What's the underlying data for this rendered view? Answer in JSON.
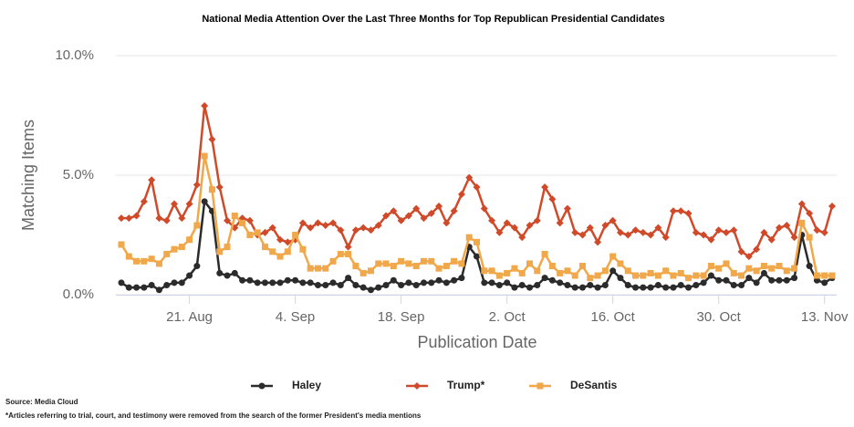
{
  "chart_data": {
    "type": "line",
    "title": "National Media Attention Over the Last Three Months for Top Republican Presidential Candidates",
    "y_label": "Matching Items",
    "x_label": "Publication Date",
    "notes": [
      "Source: Media Cloud",
      "*Articles referring to trial, court, and testimony were removed from the search of the former President's media mentions"
    ],
    "x": [
      "12. Aug",
      "13. Aug",
      "14. Aug",
      "15. Aug",
      "16. Aug",
      "17. Aug",
      "18. Aug",
      "19. Aug",
      "20. Aug",
      "21. Aug",
      "22. Aug",
      "23. Aug",
      "24. Aug",
      "25. Aug",
      "26. Aug",
      "27. Aug",
      "28. Aug",
      "29. Aug",
      "30. Aug",
      "31. Aug",
      "1. Sep",
      "2. Sep",
      "3. Sep",
      "4. Sep",
      "5. Sep",
      "6. Sep",
      "7. Sep",
      "8. Sep",
      "9. Sep",
      "10. Sep",
      "11. Sep",
      "12. Sep",
      "13. Sep",
      "14. Sep",
      "15. Sep",
      "16. Sep",
      "17. Sep",
      "18. Sep",
      "19. Sep",
      "20. Sep",
      "21. Sep",
      "22. Sep",
      "23. Sep",
      "24. Sep",
      "25. Sep",
      "26. Sep",
      "27. Sep",
      "28. Sep",
      "29. Sep",
      "30. Sep",
      "1. Oct",
      "2. Oct",
      "3. Oct",
      "4. Oct",
      "5. Oct",
      "6. Oct",
      "7. Oct",
      "8. Oct",
      "9. Oct",
      "10. Oct",
      "11. Oct",
      "12. Oct",
      "13. Oct",
      "14. Oct",
      "15. Oct",
      "16. Oct",
      "17. Oct",
      "18. Oct",
      "19. Oct",
      "20. Oct",
      "21. Oct",
      "22. Oct",
      "23. Oct",
      "24. Oct",
      "25. Oct",
      "26. Oct",
      "27. Oct",
      "28. Oct",
      "29. Oct",
      "30. Oct",
      "31. Oct",
      "1. Nov",
      "2. Nov",
      "3. Nov",
      "4. Nov",
      "5. Nov",
      "6. Nov",
      "7. Nov",
      "8. Nov",
      "9. Nov",
      "10. Nov",
      "11. Nov",
      "12. Nov",
      "13. Nov",
      "14. Nov"
    ],
    "xticks": [
      "21. Aug",
      "4. Sep",
      "18. Sep",
      "2. Oct",
      "16. Oct",
      "30. Oct",
      "13. Nov"
    ],
    "ylim": [
      0,
      10
    ],
    "yticks": [
      {
        "value": 0,
        "label": "0.0%"
      },
      {
        "value": 5,
        "label": "5.0%"
      },
      {
        "value": 10,
        "label": "10.0%"
      }
    ],
    "grid": true,
    "series": [
      {
        "name": "Haley",
        "color": "#2b2b2b",
        "marker": "circle",
        "values": [
          0.5,
          0.3,
          0.3,
          0.3,
          0.4,
          0.2,
          0.4,
          0.5,
          0.5,
          0.8,
          1.2,
          3.9,
          3.5,
          0.9,
          0.8,
          0.9,
          0.6,
          0.6,
          0.5,
          0.5,
          0.5,
          0.5,
          0.6,
          0.6,
          0.5,
          0.5,
          0.4,
          0.4,
          0.5,
          0.4,
          0.7,
          0.4,
          0.3,
          0.2,
          0.3,
          0.4,
          0.6,
          0.4,
          0.5,
          0.4,
          0.5,
          0.5,
          0.6,
          0.5,
          0.6,
          0.7,
          2.0,
          1.6,
          0.5,
          0.5,
          0.4,
          0.5,
          0.3,
          0.4,
          0.3,
          0.4,
          0.7,
          0.6,
          0.5,
          0.4,
          0.3,
          0.3,
          0.4,
          0.3,
          0.4,
          1.0,
          0.7,
          0.4,
          0.3,
          0.3,
          0.3,
          0.4,
          0.3,
          0.3,
          0.4,
          0.3,
          0.4,
          0.5,
          0.8,
          0.6,
          0.6,
          0.4,
          0.4,
          0.7,
          0.5,
          0.9,
          0.6,
          0.6,
          0.6,
          0.7,
          2.5,
          1.2,
          0.6,
          0.5,
          0.7
        ]
      },
      {
        "name": "Trump*",
        "color": "#d04a2a",
        "marker": "diamond",
        "values": [
          3.2,
          3.2,
          3.3,
          3.9,
          4.8,
          3.2,
          3.1,
          3.8,
          3.2,
          3.8,
          4.6,
          7.9,
          6.5,
          4.5,
          3.1,
          2.8,
          3.2,
          3.1,
          2.5,
          2.6,
          2.8,
          2.3,
          2.2,
          2.3,
          3.0,
          2.8,
          3.0,
          2.9,
          3.0,
          2.7,
          2.0,
          2.7,
          2.8,
          2.7,
          2.9,
          3.3,
          3.5,
          3.1,
          3.3,
          3.6,
          3.2,
          3.4,
          3.7,
          3.0,
          3.5,
          4.2,
          4.9,
          4.5,
          3.6,
          3.1,
          2.6,
          3.0,
          2.8,
          2.4,
          2.9,
          3.1,
          4.5,
          4.0,
          3.0,
          3.6,
          2.6,
          2.5,
          2.8,
          2.2,
          2.9,
          3.1,
          2.6,
          2.5,
          2.7,
          2.6,
          2.5,
          2.8,
          2.4,
          3.5,
          3.5,
          3.4,
          2.6,
          2.5,
          2.3,
          2.7,
          2.6,
          2.7,
          1.8,
          1.6,
          1.9,
          2.6,
          2.3,
          2.8,
          2.9,
          2.4,
          3.8,
          3.4,
          2.7,
          2.6,
          3.7
        ]
      },
      {
        "name": "DeSantis",
        "color": "#f0a84a",
        "marker": "square",
        "values": [
          2.1,
          1.6,
          1.4,
          1.4,
          1.5,
          1.3,
          1.7,
          1.9,
          2.0,
          2.3,
          2.9,
          5.8,
          4.4,
          1.8,
          2.0,
          3.3,
          3.0,
          2.5,
          2.6,
          2.0,
          1.8,
          1.6,
          1.8,
          2.5,
          1.9,
          1.1,
          1.1,
          1.1,
          1.4,
          1.7,
          1.7,
          1.2,
          0.9,
          1.0,
          1.3,
          1.3,
          1.2,
          1.4,
          1.3,
          1.2,
          1.4,
          1.4,
          1.1,
          1.2,
          1.4,
          1.3,
          2.4,
          2.2,
          1.0,
          1.0,
          0.8,
          0.9,
          1.1,
          0.9,
          1.3,
          1.0,
          1.7,
          1.2,
          0.9,
          1.0,
          0.8,
          1.2,
          0.7,
          0.8,
          1.0,
          1.6,
          1.3,
          1.0,
          0.8,
          0.8,
          0.9,
          0.8,
          1.0,
          0.8,
          0.9,
          0.7,
          0.8,
          0.8,
          1.2,
          1.1,
          1.3,
          0.9,
          0.8,
          1.1,
          1.0,
          1.2,
          1.1,
          1.2,
          1.0,
          1.1,
          3.0,
          2.4,
          0.8,
          0.8,
          0.8
        ]
      }
    ]
  }
}
